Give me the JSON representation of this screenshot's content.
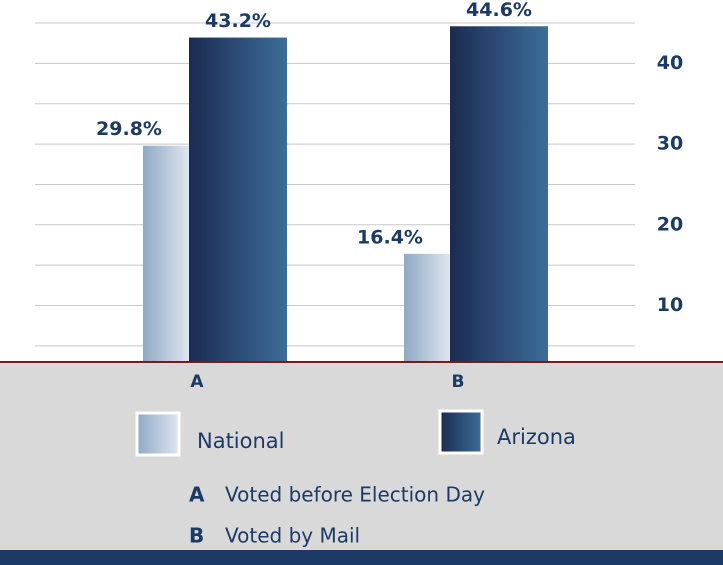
{
  "chart_data": {
    "type": "bar",
    "categories": [
      "A",
      "B"
    ],
    "series": [
      {
        "name": "National",
        "color": "#8fa9c6",
        "values": [
          29.8,
          16.4
        ],
        "value_labels": [
          "29.8%",
          "16.4%"
        ]
      },
      {
        "name": "Arizona",
        "color": "#1b2b52",
        "values": [
          43.2,
          44.6
        ],
        "value_labels": [
          "43.2%",
          "44.6%"
        ]
      }
    ],
    "ylim": [
      3,
      45.5
    ],
    "yticks": [
      10,
      20,
      30,
      40
    ],
    "grid": true,
    "grid_lines": [
      5,
      10,
      15,
      20,
      25,
      30,
      35,
      40,
      45
    ],
    "notes": [
      {
        "key": "A",
        "text": "Voted before Election Day"
      },
      {
        "key": "B",
        "text": "Voted by Mail"
      }
    ]
  }
}
